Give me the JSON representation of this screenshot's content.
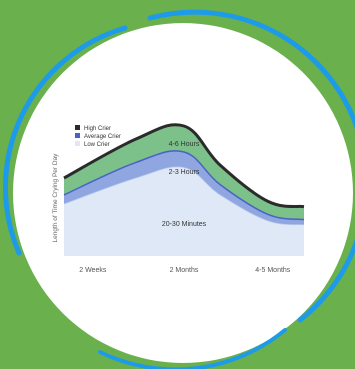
{
  "colors": {
    "background": "#6ab04c",
    "circle": "#ffffff",
    "ring": "#1e9be8",
    "high": "#7cc08a",
    "average": "#8fa6e0",
    "low": "#dfe8f6",
    "outline": "#2b2b2b"
  },
  "chart_data": {
    "type": "area",
    "ylabel": "Length of Time Crying Per Day",
    "xlabel": "",
    "categories": [
      "2 Weeks",
      "2 Months",
      "4-5 Months"
    ],
    "legend": {
      "placement": "top-left",
      "entries": [
        "High Crier",
        "Average Crier",
        "Low Crier"
      ]
    },
    "series": [
      {
        "name": "High Crier",
        "label": "4-6 Hours",
        "x": [
          0,
          0.3,
          0.5,
          0.65,
          0.85,
          1
        ],
        "y": [
          0.6,
          0.9,
          1.0,
          0.7,
          0.42,
          0.38
        ]
      },
      {
        "name": "Average Crier",
        "label": "2-3 Hours",
        "x": [
          0,
          0.3,
          0.5,
          0.65,
          0.85,
          1
        ],
        "y": [
          0.47,
          0.72,
          0.8,
          0.55,
          0.32,
          0.28
        ]
      },
      {
        "name": "Low Crier",
        "label": "20-30 Minutes",
        "x": [
          0,
          0.3,
          0.5,
          0.65,
          0.85,
          1
        ],
        "y": [
          0.4,
          0.6,
          0.68,
          0.47,
          0.27,
          0.24
        ]
      }
    ],
    "ylim": [
      0,
      1
    ],
    "xlim": [
      0,
      1
    ],
    "grid": false
  }
}
